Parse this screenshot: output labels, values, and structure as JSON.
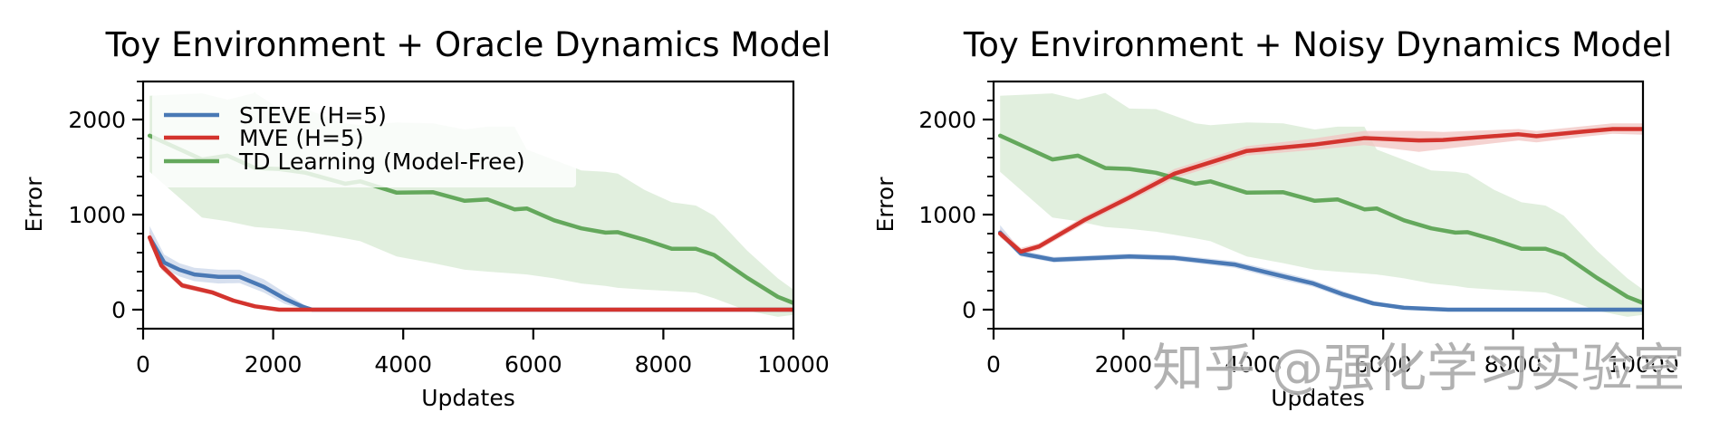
{
  "watermark": "知乎 @强化学习实验室",
  "colors": {
    "steve": "#4a79b5",
    "mve": "#d3342e",
    "td": "#64a85c",
    "steve_band": "#c9d6ea",
    "mve_band": "#f2c4c2",
    "td_band": "#dcecd8",
    "axis": "#000000",
    "legend_bg": "#ffffff"
  },
  "chart_data": [
    {
      "type": "line",
      "title": "Toy Environment + Oracle Dynamics Model",
      "xlabel": "Updates",
      "ylabel": "Error",
      "xlim": [
        0,
        10000
      ],
      "ylim": [
        -190,
        2400
      ],
      "xticks": [
        0,
        2000,
        4000,
        6000,
        8000,
        10000
      ],
      "xtick_labels": [
        "0",
        "2000",
        "4000",
        "6000",
        "8000",
        "10000"
      ],
      "yticks": [
        0,
        1000,
        2000
      ],
      "ytick_labels": [
        "0",
        "1000",
        "2000"
      ],
      "yminor_step": 200,
      "grid": false,
      "legend": {
        "position": "upper left",
        "entries": [
          "STEVE (H=5)",
          "MVE (H=5)",
          "TD Learning (Model-Free)"
        ]
      },
      "series": [
        {
          "name": "STEVE (H=5)",
          "color_key": "steve",
          "x": [
            100,
            325,
            557,
            790,
            1160,
            1485,
            1857,
            2180,
            2460,
            2600,
            3000,
            10000
          ],
          "y": [
            760,
            495,
            420,
            370,
            345,
            345,
            240,
            115,
            30,
            0,
            0,
            0
          ],
          "band_lo": [
            680,
            430,
            350,
            300,
            275,
            280,
            180,
            60,
            5,
            0,
            0,
            0
          ],
          "band_hi": [
            880,
            580,
            490,
            440,
            420,
            420,
            320,
            180,
            60,
            10,
            0,
            0
          ]
        },
        {
          "name": "MVE (H=5)",
          "color_key": "mve",
          "x": [
            100,
            280,
            600,
            1070,
            1390,
            1720,
            2090,
            3000,
            10000
          ],
          "y": [
            760,
            465,
            255,
            180,
            95,
            35,
            0,
            0,
            0
          ],
          "band_lo": [
            700,
            420,
            225,
            155,
            75,
            20,
            -10,
            -10,
            -10
          ],
          "band_hi": [
            830,
            510,
            285,
            205,
            115,
            50,
            10,
            10,
            10
          ]
        },
        {
          "name": "TD Learning (Model-Free)",
          "color_key": "td",
          "x": [
            100,
            905,
            1300,
            1720,
            2090,
            2500,
            3110,
            3340,
            3900,
            4460,
            4945,
            5295,
            5710,
            5900,
            6320,
            6740,
            7110,
            7300,
            7710,
            8130,
            8500,
            8780,
            9290,
            9760,
            10000
          ],
          "y": [
            1830,
            1580,
            1620,
            1490,
            1480,
            1440,
            1325,
            1350,
            1230,
            1235,
            1145,
            1160,
            1055,
            1065,
            940,
            855,
            810,
            815,
            735,
            640,
            640,
            575,
            335,
            135,
            70
          ],
          "band_lo": [
            1450,
            970,
            930,
            870,
            850,
            820,
            750,
            720,
            560,
            490,
            420,
            400,
            380,
            370,
            330,
            275,
            250,
            230,
            210,
            195,
            180,
            120,
            -10,
            -75,
            -55
          ],
          "band_hi": [
            2250,
            2275,
            2210,
            2280,
            2115,
            2110,
            1960,
            1940,
            1970,
            1960,
            1895,
            1925,
            1925,
            1685,
            1575,
            1465,
            1450,
            1430,
            1260,
            1130,
            1095,
            990,
            620,
            330,
            210
          ]
        }
      ]
    },
    {
      "type": "line",
      "title": "Toy Environment + Noisy Dynamics Model",
      "xlabel": "Updates",
      "ylabel": "Error",
      "xlim": [
        0,
        10000
      ],
      "ylim": [
        -190,
        2400
      ],
      "xticks": [
        0,
        2000,
        4000,
        6000,
        8000,
        10000
      ],
      "xtick_labels": [
        "0",
        "2000",
        "4000",
        "6000",
        "8000",
        "10000"
      ],
      "yticks": [
        0,
        1000,
        2000
      ],
      "ytick_labels": [
        "0",
        "1000",
        "2000"
      ],
      "yminor_step": 200,
      "grid": false,
      "legend": null,
      "series": [
        {
          "name": "STEVE (H=5)",
          "color_key": "steve",
          "x": [
            100,
            420,
            930,
            2090,
            2785,
            3710,
            4400,
            4923,
            5388,
            5850,
            6320,
            7000,
            10000
          ],
          "y": [
            810,
            590,
            525,
            560,
            545,
            475,
            360,
            275,
            160,
            65,
            20,
            0,
            0
          ],
          "band_lo": [
            770,
            560,
            495,
            530,
            515,
            440,
            320,
            240,
            125,
            40,
            5,
            -10,
            -10
          ],
          "band_hi": [
            890,
            625,
            555,
            590,
            575,
            510,
            400,
            310,
            195,
            90,
            35,
            10,
            10
          ]
        },
        {
          "name": "MVE (H=5)",
          "color_key": "mve",
          "x": [
            100,
            420,
            700,
            1390,
            2090,
            2785,
            3900,
            4923,
            5710,
            6550,
            6920,
            8085,
            8360,
            9110,
            9530,
            10000
          ],
          "y": [
            800,
            610,
            665,
            940,
            1180,
            1430,
            1670,
            1735,
            1805,
            1780,
            1785,
            1845,
            1825,
            1875,
            1900,
            1900
          ],
          "band_lo": [
            760,
            580,
            630,
            900,
            1140,
            1380,
            1620,
            1680,
            1730,
            1660,
            1690,
            1780,
            1760,
            1820,
            1850,
            1840
          ],
          "band_hi": [
            850,
            650,
            700,
            980,
            1220,
            1480,
            1720,
            1800,
            1880,
            1880,
            1870,
            1900,
            1880,
            1930,
            1960,
            1960
          ]
        },
        {
          "name": "TD Learning (Model-Free)",
          "color_key": "td",
          "x": [
            100,
            905,
            1300,
            1720,
            2090,
            2500,
            3110,
            3340,
            3900,
            4460,
            4945,
            5295,
            5710,
            5900,
            6320,
            6740,
            7110,
            7300,
            7710,
            8130,
            8500,
            8780,
            9290,
            9760,
            10000
          ],
          "y": [
            1830,
            1580,
            1620,
            1490,
            1480,
            1440,
            1325,
            1350,
            1230,
            1235,
            1145,
            1160,
            1055,
            1065,
            940,
            855,
            810,
            815,
            735,
            640,
            640,
            575,
            335,
            135,
            70
          ],
          "band_lo": [
            1450,
            970,
            930,
            870,
            850,
            820,
            750,
            720,
            560,
            490,
            420,
            400,
            380,
            370,
            330,
            275,
            250,
            230,
            210,
            195,
            180,
            120,
            -10,
            -75,
            -55
          ],
          "band_hi": [
            2250,
            2275,
            2210,
            2280,
            2115,
            2110,
            1960,
            1940,
            1970,
            1960,
            1895,
            1925,
            1925,
            1685,
            1575,
            1465,
            1450,
            1430,
            1260,
            1130,
            1095,
            990,
            620,
            330,
            210
          ]
        }
      ]
    }
  ]
}
